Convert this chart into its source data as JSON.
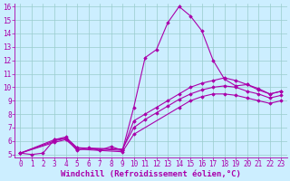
{
  "xlabel": "Windchill (Refroidissement éolien,°C)",
  "bg_color": "#cceeff",
  "line_color": "#aa00aa",
  "xlim": [
    -0.5,
    23.5
  ],
  "ylim": [
    4.8,
    16.2
  ],
  "xticks": [
    0,
    1,
    2,
    3,
    4,
    5,
    6,
    7,
    8,
    9,
    10,
    11,
    12,
    13,
    14,
    15,
    16,
    17,
    18,
    19,
    20,
    21,
    22,
    23
  ],
  "yticks": [
    5,
    6,
    7,
    8,
    9,
    10,
    11,
    12,
    13,
    14,
    15,
    16
  ],
  "lines": [
    {
      "x": [
        0,
        1,
        2,
        3,
        4,
        5,
        6,
        7,
        8,
        9,
        10,
        11,
        12,
        13,
        14,
        15,
        16,
        17,
        18,
        19,
        20,
        21,
        22,
        23
      ],
      "y": [
        5.1,
        5.0,
        5.1,
        6.1,
        6.2,
        5.3,
        5.5,
        5.3,
        5.6,
        5.3,
        8.5,
        12.2,
        12.8,
        14.8,
        16.0,
        15.3,
        14.2,
        12.0,
        10.6,
        10.1,
        10.2,
        9.8,
        9.5,
        9.7
      ]
    },
    {
      "x": [
        0,
        3,
        4,
        5,
        9,
        10,
        11,
        12,
        13,
        14,
        15,
        16,
        17,
        18,
        19,
        20,
        21,
        22,
        23
      ],
      "y": [
        5.1,
        6.0,
        6.2,
        5.5,
        5.3,
        7.5,
        8.0,
        8.5,
        9.0,
        9.5,
        10.0,
        10.3,
        10.5,
        10.7,
        10.5,
        10.2,
        9.9,
        9.5,
        9.7
      ]
    },
    {
      "x": [
        0,
        3,
        4,
        5,
        9,
        10,
        11,
        12,
        13,
        14,
        15,
        16,
        17,
        18,
        19,
        20,
        21,
        22,
        23
      ],
      "y": [
        5.1,
        6.1,
        6.3,
        5.5,
        5.4,
        7.0,
        7.6,
        8.1,
        8.6,
        9.1,
        9.5,
        9.8,
        10.0,
        10.1,
        10.0,
        9.7,
        9.5,
        9.2,
        9.4
      ]
    },
    {
      "x": [
        0,
        3,
        4,
        5,
        9,
        10,
        14,
        15,
        16,
        17,
        18,
        19,
        20,
        21,
        22,
        23
      ],
      "y": [
        5.1,
        5.9,
        6.1,
        5.4,
        5.2,
        6.5,
        8.5,
        9.0,
        9.3,
        9.5,
        9.5,
        9.4,
        9.2,
        9.0,
        8.8,
        9.0
      ]
    }
  ],
  "marker": "D",
  "markersize": 1.8,
  "linewidth": 0.8,
  "xlabel_fontsize": 6.5,
  "tick_fontsize": 5.5,
  "grid_color": "#99cccc"
}
